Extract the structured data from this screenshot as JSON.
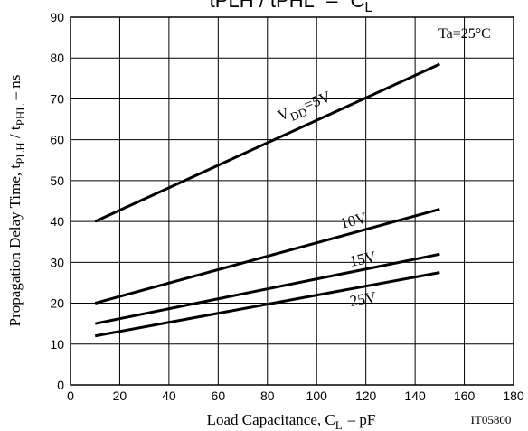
{
  "chart_data": {
    "type": "line",
    "title_main": "tPLH / tPHL",
    "title_sep": "–",
    "title_var": "C",
    "title_var_sub": "L",
    "xlabel_main": "Load Capacitance, C",
    "xlabel_sub": "L",
    "xlabel_unit": "–  pF",
    "ylabel_main": "Propagation Delay Time, t",
    "ylabel_sub1": "PLH",
    "ylabel_mid": " / t",
    "ylabel_sub2": "PHL",
    "ylabel_unit": "  –  ns",
    "annotation": "Ta=25°C",
    "figure_code": "IT05800",
    "xlim": [
      0,
      180
    ],
    "ylim": [
      0,
      90
    ],
    "xticks": [
      "0",
      "20",
      "40",
      "60",
      "80",
      "100",
      "120",
      "140",
      "160",
      "180"
    ],
    "yticks": [
      "0",
      "10",
      "20",
      "30",
      "40",
      "50",
      "60",
      "70",
      "80",
      "90"
    ],
    "grid": true,
    "series": [
      {
        "name_main": "V",
        "name_sub": "DD",
        "name_rest": "=5V",
        "x": [
          10,
          150
        ],
        "y": [
          40,
          78.5
        ]
      },
      {
        "name_main": "10V",
        "x": [
          10,
          150
        ],
        "y": [
          20,
          43
        ]
      },
      {
        "name_main": "15V",
        "x": [
          10,
          150
        ],
        "y": [
          15,
          32
        ]
      },
      {
        "name_main": "25V",
        "x": [
          10,
          150
        ],
        "y": [
          12,
          27.5
        ]
      }
    ]
  },
  "colors": {
    "line": "#000000",
    "grid": "#000000",
    "background": "#ffffff"
  }
}
